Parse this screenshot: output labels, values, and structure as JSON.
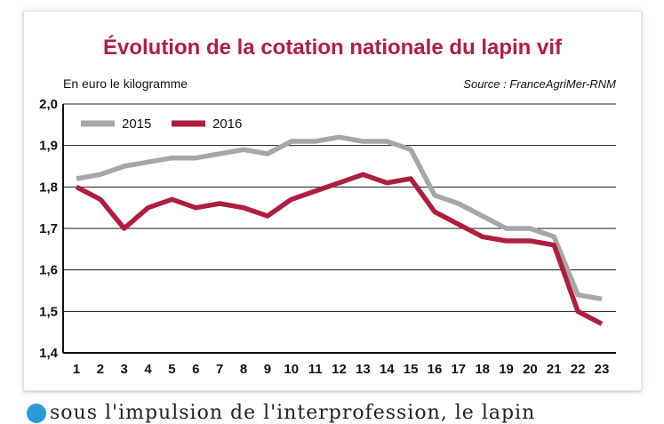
{
  "chart_data": {
    "type": "line",
    "title": "Évolution de la cotation nationale du lapin vif",
    "unit_label": "En euro le kilogramme",
    "source": "Source : FranceAgriMer-RNM",
    "x": [
      1,
      2,
      3,
      4,
      5,
      6,
      7,
      8,
      9,
      10,
      11,
      12,
      13,
      14,
      15,
      16,
      17,
      18,
      19,
      20,
      21,
      22,
      23
    ],
    "y_ticks": [
      "2,0",
      "1,9",
      "1,8",
      "1,7",
      "1,6",
      "1,5",
      "1,4"
    ],
    "y_tick_values": [
      2.0,
      1.9,
      1.8,
      1.7,
      1.6,
      1.5,
      1.4
    ],
    "ylim": [
      1.4,
      2.0
    ],
    "grid": true,
    "legend_position": "top-left",
    "series": [
      {
        "name": "2015",
        "color": "#a7a7a7",
        "values": [
          1.82,
          1.83,
          1.85,
          1.86,
          1.87,
          1.87,
          1.88,
          1.89,
          1.88,
          1.91,
          1.91,
          1.92,
          1.91,
          1.91,
          1.89,
          1.78,
          1.76,
          1.73,
          1.7,
          1.7,
          1.68,
          1.54,
          1.53
        ]
      },
      {
        "name": "2016",
        "color": "#b01e3f",
        "values": [
          1.8,
          1.77,
          1.7,
          1.75,
          1.77,
          1.75,
          1.76,
          1.75,
          1.73,
          1.77,
          1.79,
          1.81,
          1.83,
          1.81,
          1.82,
          1.74,
          1.71,
          1.68,
          1.67,
          1.67,
          1.66,
          1.5,
          1.47
        ]
      }
    ]
  },
  "bottom_text": "sous l'impulsion de l'interprofession, le lapin",
  "bullet_color": "#2a9bd6"
}
